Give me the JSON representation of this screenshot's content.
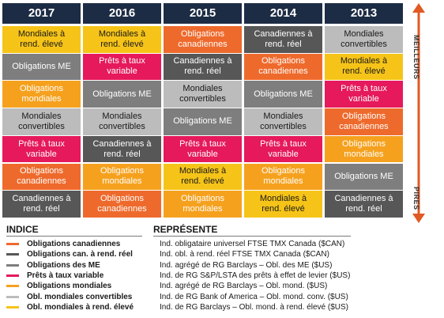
{
  "chart_data": {
    "type": "table",
    "years": [
      "2017",
      "2016",
      "2015",
      "2014",
      "2013"
    ],
    "rank_label_top": "MEILLEURS",
    "rank_label_bottom": "PIRES",
    "categories": {
      "can": {
        "label": "Obligations canadiennes",
        "color": "#ee6a2c",
        "text": "light"
      },
      "rr": {
        "label": "Obligations can. à rend. réel",
        "color": "#575757",
        "text": "light"
      },
      "me": {
        "label": "Obligations des ME",
        "color": "#7e7e7e",
        "text": "light"
      },
      "pret": {
        "label": "Prêts à taux variable",
        "color": "#e5195b",
        "text": "light"
      },
      "mond": {
        "label": "Obligations mondiales",
        "color": "#f5a11e",
        "text": "light"
      },
      "conv": {
        "label": "Obl. mondiales convertibles",
        "color": "#bcbcbc",
        "text": "dark"
      },
      "elev": {
        "label": "Obl. mondiales à rend. élevé",
        "color": "#f6c418",
        "text": "dark"
      }
    },
    "columns": [
      {
        "year": "2017",
        "cells": [
          {
            "key": "elev",
            "text": "Mondiales à\nrend. élevé"
          },
          {
            "key": "me",
            "text": "Obligations ME"
          },
          {
            "key": "mond",
            "text": "Obligations\nmondiales"
          },
          {
            "key": "conv",
            "text": "Mondiales\nconvertibles"
          },
          {
            "key": "pret",
            "text": "Prêts à taux\nvariable"
          },
          {
            "key": "can",
            "text": "Obligations\ncanadiennes"
          },
          {
            "key": "rr",
            "text": "Canadiennes à\nrend. réel"
          }
        ]
      },
      {
        "year": "2016",
        "cells": [
          {
            "key": "elev",
            "text": "Mondiales à\nrend. élevé"
          },
          {
            "key": "pret",
            "text": "Prêts à taux\nvariable"
          },
          {
            "key": "me",
            "text": "Obligations ME"
          },
          {
            "key": "conv",
            "text": "Mondiales\nconvertibles"
          },
          {
            "key": "rr",
            "text": "Canadiennes à\nrend. réel"
          },
          {
            "key": "mond",
            "text": "Obligations\nmondiales"
          },
          {
            "key": "can",
            "text": "Obligations\ncanadiennes"
          }
        ]
      },
      {
        "year": "2015",
        "cells": [
          {
            "key": "can",
            "text": "Obligations\ncanadiennes"
          },
          {
            "key": "rr",
            "text": "Canadiennes à\nrend. réel"
          },
          {
            "key": "conv",
            "text": "Mondiales\nconvertibles"
          },
          {
            "key": "me",
            "text": "Obligations ME"
          },
          {
            "key": "pret",
            "text": "Prêts à taux\nvariable"
          },
          {
            "key": "elev",
            "text": "Mondiales à\nrend. élevé"
          },
          {
            "key": "mond",
            "text": "Obligations\nmondiales"
          }
        ]
      },
      {
        "year": "2014",
        "cells": [
          {
            "key": "rr",
            "text": "Canadiennes à\nrend. réel"
          },
          {
            "key": "can",
            "text": "Obligations\ncanadiennes"
          },
          {
            "key": "me",
            "text": "Obligations ME"
          },
          {
            "key": "conv",
            "text": "Mondiales\nconvertibles"
          },
          {
            "key": "pret",
            "text": "Prêts à taux\nvariable"
          },
          {
            "key": "mond",
            "text": "Obligations\nmondiales"
          },
          {
            "key": "elev",
            "text": "Mondiales à\nrend. élevé"
          }
        ]
      },
      {
        "year": "2013",
        "cells": [
          {
            "key": "conv",
            "text": "Mondiales\nconvertibles"
          },
          {
            "key": "elev",
            "text": "Mondiales à\nrend. élevé"
          },
          {
            "key": "pret",
            "text": "Prêts à taux\nvariable"
          },
          {
            "key": "can",
            "text": "Obligations\ncanadiennes"
          },
          {
            "key": "mond",
            "text": "Obligations\nmondiales"
          },
          {
            "key": "me",
            "text": "Obligations ME"
          },
          {
            "key": "rr",
            "text": "Canadiennes à\nrend. réel"
          }
        ]
      }
    ]
  },
  "legend": {
    "heading_index": "INDICE",
    "heading_represents": "REPRÉSENTE",
    "items": [
      {
        "key": "can",
        "name": "Obligations canadiennes",
        "desc": "Ind. obligataire universel FTSE TMX Canada ($CAN)"
      },
      {
        "key": "rr",
        "name": "Obligations can. à rend. réel",
        "desc": "Ind. obl. à rend. réel FTSE TMX Canada ($CAN)"
      },
      {
        "key": "me",
        "name": "Obligations des ME",
        "desc": "Ind. agrégé de RG Barclays – Obl. des ME ($US)"
      },
      {
        "key": "pret",
        "name": "Prêts à taux variable",
        "desc": "Ind. de RG S&P/LSTA des prêts à effet de levier ($US)"
      },
      {
        "key": "mond",
        "name": "Obligations mondiales",
        "desc": "Ind. agrégé de RG Barclays – Obl. mond. ($US)"
      },
      {
        "key": "conv",
        "name": "Obl. mondiales convertibles",
        "desc": "Ind. de RG Bank of America – Obl. mond. conv. ($US)"
      },
      {
        "key": "elev",
        "name": "Obl. mondiales à rend. élevé",
        "desc": "Ind. de RG Barclays – Obl. mond. à rend. élevé ($US)"
      }
    ]
  }
}
